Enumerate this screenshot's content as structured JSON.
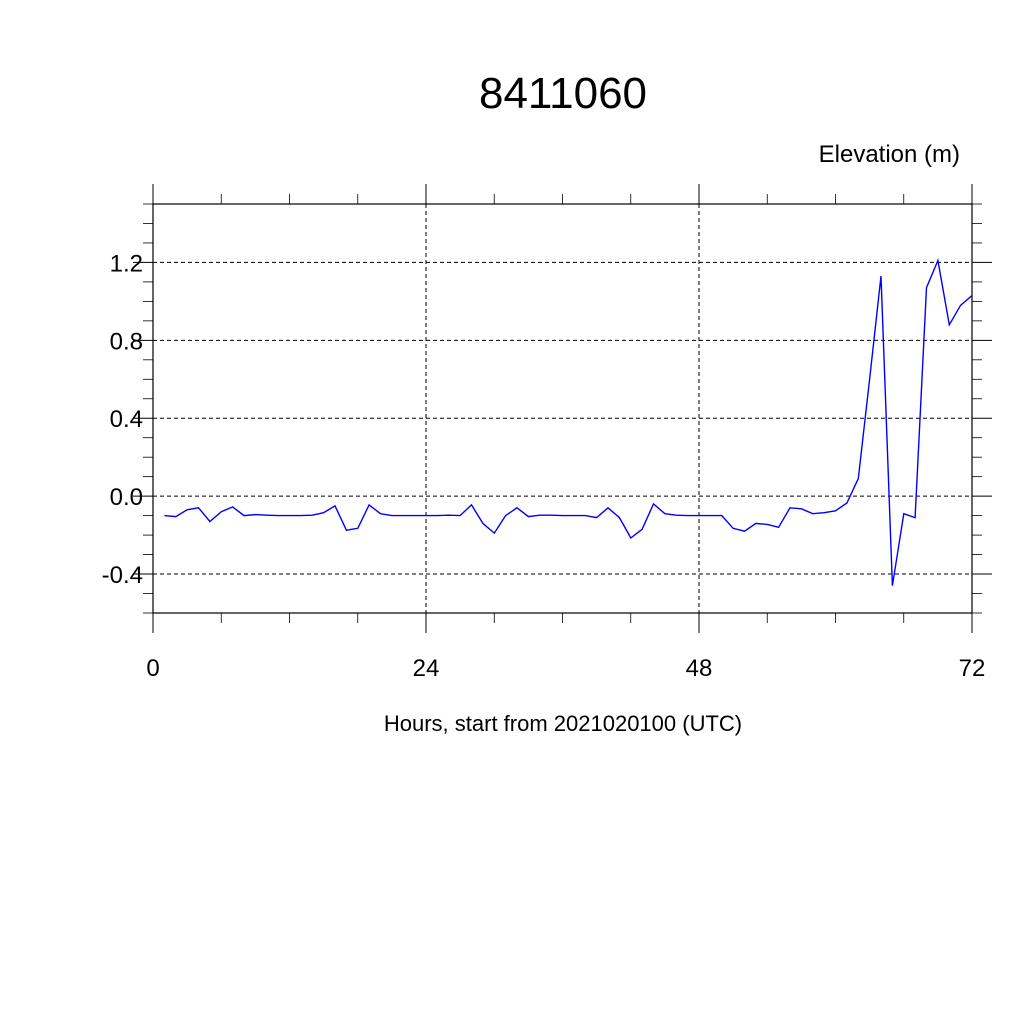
{
  "chart_data": {
    "type": "line",
    "title": "8411060",
    "ylabel": "Elevation (m)",
    "xlabel": "Hours, start from 2021020100 (UTC)",
    "xlim": [
      0,
      72
    ],
    "ylim": [
      -0.6,
      1.5
    ],
    "x_ticks": [
      0,
      24,
      48,
      72
    ],
    "x_tick_labels": [
      "0",
      "24",
      "48",
      "72"
    ],
    "y_ticks": [
      -0.4,
      0.0,
      0.4,
      0.8,
      1.2
    ],
    "y_tick_labels": [
      "-0.4",
      "0.0",
      "0.4",
      "0.8",
      "1.2"
    ],
    "grid": true,
    "series_color": "#0000ff",
    "series": [
      {
        "x": [
          1,
          2,
          3,
          4,
          5,
          6,
          7,
          8,
          9,
          10,
          11,
          12,
          13,
          14,
          15,
          16,
          17,
          18,
          19,
          20,
          21,
          22,
          23,
          24,
          25,
          26,
          27,
          28,
          29,
          30,
          31,
          32,
          33,
          34,
          35,
          36,
          37,
          38,
          39,
          40,
          41,
          42,
          43,
          44,
          45,
          46,
          47,
          48,
          49,
          50,
          51,
          52,
          53,
          54,
          55,
          56,
          57,
          58,
          59,
          60,
          61,
          62,
          63,
          64,
          65,
          66,
          67,
          68,
          69,
          70,
          71,
          72
        ],
        "values": [
          -0.1,
          -0.105,
          -0.07,
          -0.06,
          -0.13,
          -0.08,
          -0.055,
          -0.1,
          -0.095,
          -0.098,
          -0.1,
          -0.1,
          -0.1,
          -0.098,
          -0.085,
          -0.05,
          -0.175,
          -0.165,
          -0.045,
          -0.09,
          -0.1,
          -0.1,
          -0.1,
          -0.1,
          -0.1,
          -0.098,
          -0.1,
          -0.045,
          -0.14,
          -0.19,
          -0.1,
          -0.06,
          -0.105,
          -0.098,
          -0.098,
          -0.1,
          -0.1,
          -0.1,
          -0.11,
          -0.06,
          -0.11,
          -0.215,
          -0.17,
          -0.04,
          -0.09,
          -0.098,
          -0.1,
          -0.1,
          -0.1,
          -0.1,
          -0.165,
          -0.18,
          -0.14,
          -0.145,
          -0.16,
          -0.06,
          -0.065,
          -0.09,
          -0.085,
          -0.075,
          -0.035,
          0.09,
          0.6,
          1.13,
          -0.46,
          -0.09,
          -0.11,
          1.07,
          1.21,
          0.88,
          0.98,
          1.03
        ]
      }
    ]
  }
}
